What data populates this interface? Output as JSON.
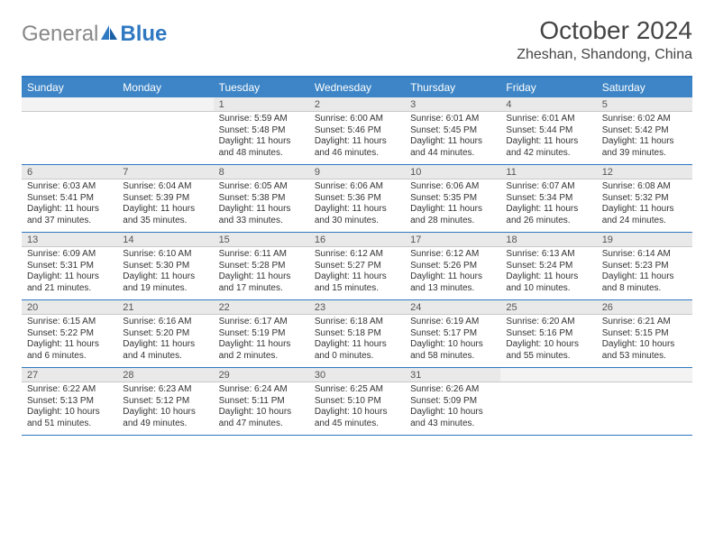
{
  "header": {
    "logo_general": "General",
    "logo_blue": "Blue",
    "month_title": "October 2024",
    "location": "Zheshan, Shandong, China"
  },
  "colors": {
    "accent": "#2f78c2",
    "header_bg": "#3d85c6",
    "daynum_bg": "#e9e9e9",
    "text": "#333333"
  },
  "daynames": [
    "Sunday",
    "Monday",
    "Tuesday",
    "Wednesday",
    "Thursday",
    "Friday",
    "Saturday"
  ],
  "weeks": [
    [
      {
        "n": "",
        "sr": "",
        "ss": "",
        "dl": ""
      },
      {
        "n": "",
        "sr": "",
        "ss": "",
        "dl": ""
      },
      {
        "n": "1",
        "sr": "Sunrise: 5:59 AM",
        "ss": "Sunset: 5:48 PM",
        "dl": "Daylight: 11 hours and 48 minutes."
      },
      {
        "n": "2",
        "sr": "Sunrise: 6:00 AM",
        "ss": "Sunset: 5:46 PM",
        "dl": "Daylight: 11 hours and 46 minutes."
      },
      {
        "n": "3",
        "sr": "Sunrise: 6:01 AM",
        "ss": "Sunset: 5:45 PM",
        "dl": "Daylight: 11 hours and 44 minutes."
      },
      {
        "n": "4",
        "sr": "Sunrise: 6:01 AM",
        "ss": "Sunset: 5:44 PM",
        "dl": "Daylight: 11 hours and 42 minutes."
      },
      {
        "n": "5",
        "sr": "Sunrise: 6:02 AM",
        "ss": "Sunset: 5:42 PM",
        "dl": "Daylight: 11 hours and 39 minutes."
      }
    ],
    [
      {
        "n": "6",
        "sr": "Sunrise: 6:03 AM",
        "ss": "Sunset: 5:41 PM",
        "dl": "Daylight: 11 hours and 37 minutes."
      },
      {
        "n": "7",
        "sr": "Sunrise: 6:04 AM",
        "ss": "Sunset: 5:39 PM",
        "dl": "Daylight: 11 hours and 35 minutes."
      },
      {
        "n": "8",
        "sr": "Sunrise: 6:05 AM",
        "ss": "Sunset: 5:38 PM",
        "dl": "Daylight: 11 hours and 33 minutes."
      },
      {
        "n": "9",
        "sr": "Sunrise: 6:06 AM",
        "ss": "Sunset: 5:36 PM",
        "dl": "Daylight: 11 hours and 30 minutes."
      },
      {
        "n": "10",
        "sr": "Sunrise: 6:06 AM",
        "ss": "Sunset: 5:35 PM",
        "dl": "Daylight: 11 hours and 28 minutes."
      },
      {
        "n": "11",
        "sr": "Sunrise: 6:07 AM",
        "ss": "Sunset: 5:34 PM",
        "dl": "Daylight: 11 hours and 26 minutes."
      },
      {
        "n": "12",
        "sr": "Sunrise: 6:08 AM",
        "ss": "Sunset: 5:32 PM",
        "dl": "Daylight: 11 hours and 24 minutes."
      }
    ],
    [
      {
        "n": "13",
        "sr": "Sunrise: 6:09 AM",
        "ss": "Sunset: 5:31 PM",
        "dl": "Daylight: 11 hours and 21 minutes."
      },
      {
        "n": "14",
        "sr": "Sunrise: 6:10 AM",
        "ss": "Sunset: 5:30 PM",
        "dl": "Daylight: 11 hours and 19 minutes."
      },
      {
        "n": "15",
        "sr": "Sunrise: 6:11 AM",
        "ss": "Sunset: 5:28 PM",
        "dl": "Daylight: 11 hours and 17 minutes."
      },
      {
        "n": "16",
        "sr": "Sunrise: 6:12 AM",
        "ss": "Sunset: 5:27 PM",
        "dl": "Daylight: 11 hours and 15 minutes."
      },
      {
        "n": "17",
        "sr": "Sunrise: 6:12 AM",
        "ss": "Sunset: 5:26 PM",
        "dl": "Daylight: 11 hours and 13 minutes."
      },
      {
        "n": "18",
        "sr": "Sunrise: 6:13 AM",
        "ss": "Sunset: 5:24 PM",
        "dl": "Daylight: 11 hours and 10 minutes."
      },
      {
        "n": "19",
        "sr": "Sunrise: 6:14 AM",
        "ss": "Sunset: 5:23 PM",
        "dl": "Daylight: 11 hours and 8 minutes."
      }
    ],
    [
      {
        "n": "20",
        "sr": "Sunrise: 6:15 AM",
        "ss": "Sunset: 5:22 PM",
        "dl": "Daylight: 11 hours and 6 minutes."
      },
      {
        "n": "21",
        "sr": "Sunrise: 6:16 AM",
        "ss": "Sunset: 5:20 PM",
        "dl": "Daylight: 11 hours and 4 minutes."
      },
      {
        "n": "22",
        "sr": "Sunrise: 6:17 AM",
        "ss": "Sunset: 5:19 PM",
        "dl": "Daylight: 11 hours and 2 minutes."
      },
      {
        "n": "23",
        "sr": "Sunrise: 6:18 AM",
        "ss": "Sunset: 5:18 PM",
        "dl": "Daylight: 11 hours and 0 minutes."
      },
      {
        "n": "24",
        "sr": "Sunrise: 6:19 AM",
        "ss": "Sunset: 5:17 PM",
        "dl": "Daylight: 10 hours and 58 minutes."
      },
      {
        "n": "25",
        "sr": "Sunrise: 6:20 AM",
        "ss": "Sunset: 5:16 PM",
        "dl": "Daylight: 10 hours and 55 minutes."
      },
      {
        "n": "26",
        "sr": "Sunrise: 6:21 AM",
        "ss": "Sunset: 5:15 PM",
        "dl": "Daylight: 10 hours and 53 minutes."
      }
    ],
    [
      {
        "n": "27",
        "sr": "Sunrise: 6:22 AM",
        "ss": "Sunset: 5:13 PM",
        "dl": "Daylight: 10 hours and 51 minutes."
      },
      {
        "n": "28",
        "sr": "Sunrise: 6:23 AM",
        "ss": "Sunset: 5:12 PM",
        "dl": "Daylight: 10 hours and 49 minutes."
      },
      {
        "n": "29",
        "sr": "Sunrise: 6:24 AM",
        "ss": "Sunset: 5:11 PM",
        "dl": "Daylight: 10 hours and 47 minutes."
      },
      {
        "n": "30",
        "sr": "Sunrise: 6:25 AM",
        "ss": "Sunset: 5:10 PM",
        "dl": "Daylight: 10 hours and 45 minutes."
      },
      {
        "n": "31",
        "sr": "Sunrise: 6:26 AM",
        "ss": "Sunset: 5:09 PM",
        "dl": "Daylight: 10 hours and 43 minutes."
      },
      {
        "n": "",
        "sr": "",
        "ss": "",
        "dl": ""
      },
      {
        "n": "",
        "sr": "",
        "ss": "",
        "dl": ""
      }
    ]
  ]
}
